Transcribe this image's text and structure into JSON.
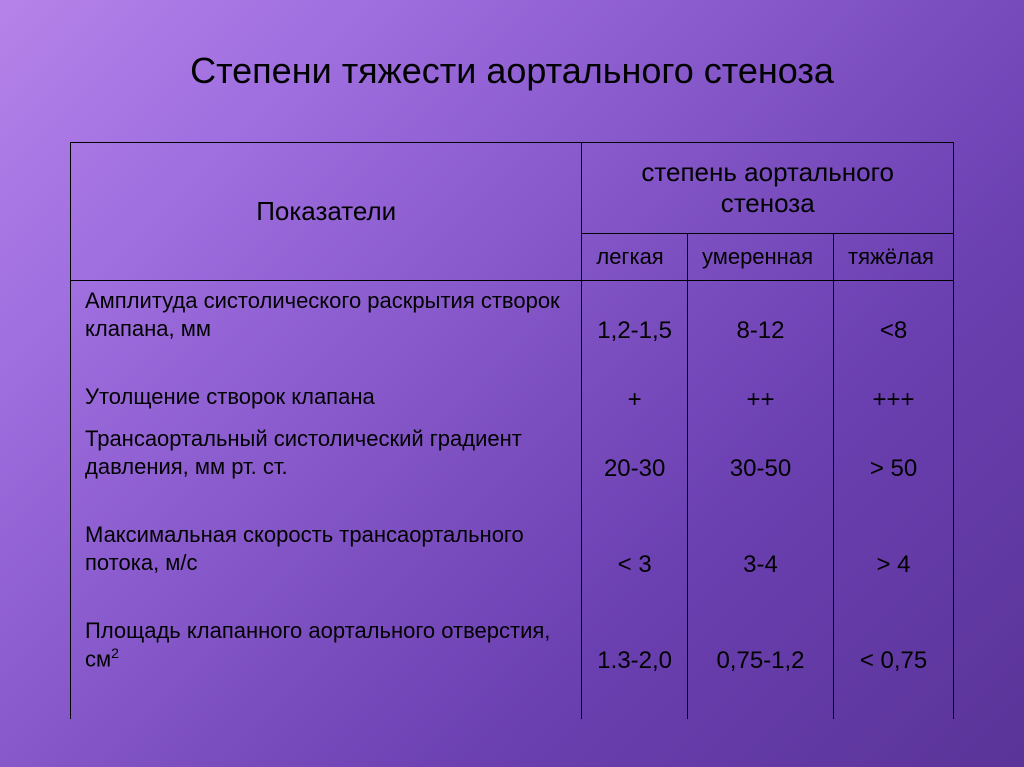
{
  "title": "Степени тяжести аортального стеноза",
  "table": {
    "indicator_header": "Показатели",
    "group_header": "степень  аортального  стеноза",
    "severity_labels": [
      "легкая",
      "умеренная",
      "тяжёлая"
    ],
    "rows": [
      {
        "label": "Амплитуда систолического раскрытия створок клапана, мм",
        "height": "tall",
        "values": [
          "1,2-1,5",
          "8-12",
          "<8"
        ]
      },
      {
        "label": "Утолщение створок клапана",
        "height": "short",
        "values": [
          "+",
          "++",
          "+++"
        ]
      },
      {
        "label": "Трансаортальный систолический градиент давления, мм рт. ст.",
        "height": "tall",
        "values": [
          "20-30",
          "30-50",
          "> 50"
        ]
      },
      {
        "label": "Максимальная скорость трансаортального потока, м/с",
        "height": "tall",
        "values": [
          "< 3",
          "3-4",
          "> 4"
        ]
      },
      {
        "label": "Площадь клапанного аортального отверстия, см",
        "sup": "2",
        "height": "tall",
        "values": [
          "1.3-2,0",
          "0,75-1,2",
          "< 0,75"
        ]
      }
    ]
  },
  "colors": {
    "text": "#000000",
    "border": "#000000"
  }
}
